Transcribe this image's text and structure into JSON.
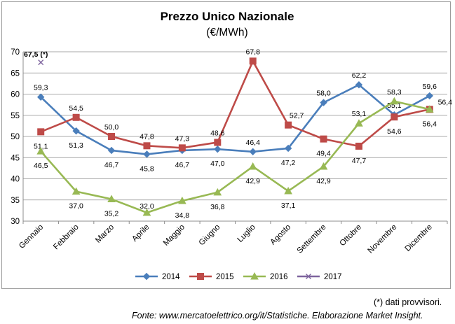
{
  "chart_data": {
    "type": "line",
    "title": "Prezzo Unico Nazionale",
    "subtitle": "(€/MWh)",
    "xlabel": "",
    "ylabel": "",
    "ylim": [
      30,
      70
    ],
    "yticks": [
      "30",
      "35",
      "40",
      "45",
      "50",
      "55",
      "60",
      "65",
      "70"
    ],
    "categories": [
      "Gennaio",
      "Febbraio",
      "Marzo",
      "Aprile",
      "Maggio",
      "Giugno",
      "Luglio",
      "Agosto",
      "Settembre",
      "Ottobre",
      "Novembre",
      "Dicembre"
    ],
    "grid": true,
    "legend": "bottom",
    "series": [
      {
        "name": "2014",
        "color": "#4a7ebb",
        "marker": "diamond",
        "values": [
          59.3,
          51.3,
          46.7,
          45.8,
          46.7,
          47.0,
          46.4,
          47.2,
          58.0,
          62.2,
          55.1,
          59.6
        ],
        "labels": [
          "59,3",
          "51,3",
          "46,7",
          "45,8",
          "46,7",
          "47,0",
          "46,4",
          "47,2",
          "58,0",
          "62,2",
          "55,1",
          "59,6"
        ]
      },
      {
        "name": "2015",
        "color": "#be4b48",
        "marker": "square",
        "values": [
          51.1,
          54.5,
          50.0,
          47.8,
          47.3,
          48.6,
          67.8,
          52.7,
          49.4,
          47.7,
          54.6,
          56.4
        ],
        "labels": [
          "51,1",
          "54,5",
          "50,0",
          "47,8",
          "47,3",
          "48,6",
          "67,8",
          "52,7",
          "49,4",
          "47,7",
          "54,6",
          "56,4"
        ]
      },
      {
        "name": "2016",
        "color": "#98b954",
        "marker": "triangle",
        "values": [
          46.5,
          37.0,
          35.2,
          32.0,
          34.8,
          36.8,
          42.9,
          37.1,
          42.9,
          53.1,
          58.3,
          56.4
        ],
        "labels": [
          "46,5",
          "37,0",
          "35,2",
          "32,0",
          "34,8",
          "36,8",
          "42,9",
          "37,1",
          "42,9",
          "53,1",
          "58,3",
          "56,4"
        ]
      },
      {
        "name": "2017",
        "color": "#7e649e",
        "marker": "x",
        "values": [
          67.5,
          null,
          null,
          null,
          null,
          null,
          null,
          null,
          null,
          null,
          null,
          null
        ],
        "labels": [
          "67,5 (*)",
          "",
          "",
          "",
          "",
          "",
          "",
          "",
          "",
          "",
          "",
          ""
        ]
      }
    ]
  },
  "notes": {
    "provisional": "(*) dati provvisori.",
    "source": "Fonte: www.mercatoelettrico.org/it/Statistiche. Elaborazione Market Insight."
  }
}
